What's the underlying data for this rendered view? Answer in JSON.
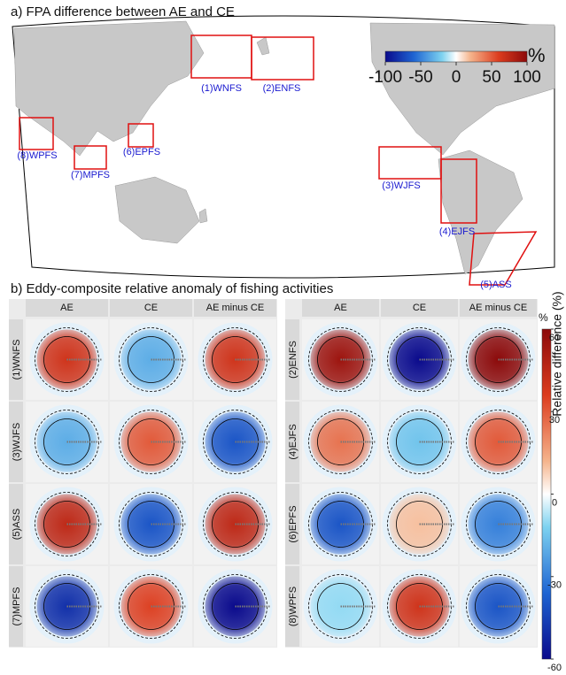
{
  "panel_a": {
    "title": "a) FPA difference between AE and CE",
    "colorbar": {
      "lim": [
        -100,
        100
      ],
      "ticks": [
        -100,
        -50,
        0,
        50,
        100
      ],
      "unit": "%"
    },
    "regions": [
      "(1)WNFS",
      "(2)ENFS",
      "(3)WJFS",
      "(4)EJFS",
      "(5)ASS",
      "(6)EPFS",
      "(7)MPFS",
      "(8)WPFS"
    ]
  },
  "panel_b": {
    "title": "b) Eddy-composite relative anomaly of fishing activities",
    "columns": [
      "AE",
      "CE",
      "AE minus CE"
    ],
    "left": [
      {
        "name": "(1)WNFS",
        "values": [
          40,
          -20,
          40
        ]
      },
      {
        "name": "(3)WJFS",
        "values": [
          -20,
          30,
          -40
        ]
      },
      {
        "name": "(5)ASS",
        "values": [
          45,
          -40,
          45
        ]
      },
      {
        "name": "(7)MPFS",
        "values": [
          -50,
          35,
          -60
        ]
      }
    ],
    "right": [
      {
        "name": "(2)ENFS",
        "values": [
          55,
          -60,
          60
        ]
      },
      {
        "name": "(4)EJFS",
        "values": [
          25,
          -15,
          30
        ]
      },
      {
        "name": "(6)EPFS",
        "values": [
          -40,
          10,
          -30
        ]
      },
      {
        "name": "(8)WPFS",
        "values": [
          -10,
          40,
          -40
        ]
      }
    ],
    "colorbar": {
      "lim": [
        -60,
        60
      ],
      "ticks": [
        -60,
        -30,
        0,
        30,
        60
      ],
      "unit": "%",
      "label": "Relative difference (%)"
    }
  }
}
